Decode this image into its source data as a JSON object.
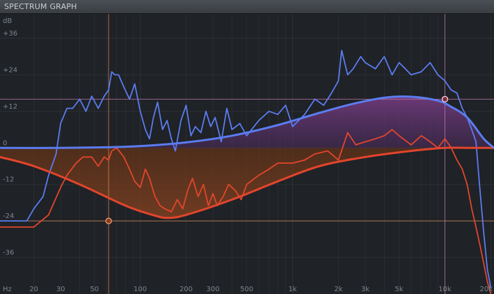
{
  "window": {
    "title": "SPECTRUM GRAPH"
  },
  "y_axis": {
    "unit": "dB",
    "ticks": [
      {
        "label": "+36",
        "value": 36
      },
      {
        "label": "+24",
        "value": 24
      },
      {
        "label": "+12",
        "value": 12
      },
      {
        "label": "0",
        "value": 0
      },
      {
        "label": "-12",
        "value": -12
      },
      {
        "label": "-24",
        "value": -24
      },
      {
        "label": "-36",
        "value": -36
      }
    ]
  },
  "x_axis": {
    "unit": "Hz",
    "ticks": [
      {
        "label": "20",
        "value": 20
      },
      {
        "label": "30",
        "value": 30
      },
      {
        "label": "50",
        "value": 50
      },
      {
        "label": "100",
        "value": 100
      },
      {
        "label": "200",
        "value": 200
      },
      {
        "label": "300",
        "value": 300
      },
      {
        "label": "500",
        "value": 500
      },
      {
        "label": "1k",
        "value": 1000
      },
      {
        "label": "2k",
        "value": 2000
      },
      {
        "label": "3k",
        "value": 3000
      },
      {
        "label": "5k",
        "value": 5000
      },
      {
        "label": "10k",
        "value": 10000
      },
      {
        "label": "20k",
        "value": 20000
      }
    ]
  },
  "colors": {
    "background": "#1f2226",
    "grid": "#2c3035",
    "blue_spectrum": "#5b7cf0",
    "red_spectrum": "#e2452c",
    "blue_fill": "#6a3a78",
    "red_fill": "#7a3a1c",
    "blue_marker_line": "#c07ab0",
    "red_marker_line": "#d88a5a"
  },
  "chart_data": {
    "type": "line",
    "x_scale": "log",
    "xlim": [
      12,
      21000
    ],
    "ylim": [
      -48,
      44
    ],
    "series": [
      {
        "key": "blue-curve",
        "color": "#5b7cf0",
        "x": [
          12,
          30,
          60,
          100,
          200,
          400,
          800,
          1500,
          2500,
          4000,
          6000,
          9000,
          11000,
          14000,
          18000,
          21000
        ],
        "y": [
          0,
          0,
          0.2,
          0.6,
          1.8,
          4,
          7.5,
          11.5,
          14.5,
          16.5,
          16.8,
          15.5,
          13.5,
          10,
          3,
          0
        ]
      },
      {
        "key": "red-curve",
        "color": "#e2452c",
        "x": [
          12,
          20,
          40,
          80,
          120,
          150,
          200,
          400,
          800,
          1500,
          3000,
          6000,
          10000,
          15000,
          21000
        ],
        "y": [
          -3,
          -6,
          -12,
          -19,
          -22,
          -23,
          -22,
          -17,
          -11,
          -6,
          -3,
          -1,
          0,
          0,
          0
        ]
      },
      {
        "key": "blue-spectrum",
        "color": "#5b7cf0",
        "x": [
          12,
          18,
          20,
          23,
          25,
          28,
          30,
          33,
          36,
          40,
          44,
          48,
          53,
          58,
          62,
          65,
          68,
          72,
          78,
          85,
          92,
          100,
          108,
          115,
          122,
          130,
          140,
          150,
          160,
          170,
          185,
          200,
          215,
          230,
          250,
          270,
          290,
          310,
          340,
          370,
          400,
          450,
          500,
          600,
          700,
          800,
          900,
          1000,
          1200,
          1400,
          1600,
          1800,
          2000,
          2100,
          2300,
          2500,
          2800,
          3000,
          3500,
          4000,
          4500,
          5000,
          5500,
          6000,
          7000,
          8000,
          9000,
          10000,
          11000,
          12000,
          13000,
          14000,
          15000,
          16000,
          17000,
          18000,
          19000,
          20000
        ],
        "y": [
          -24,
          -24,
          -20,
          -16,
          -9,
          -2,
          8,
          13,
          13,
          16,
          12,
          17,
          13,
          17,
          19,
          25,
          24,
          24,
          20,
          16,
          21,
          12,
          6,
          3,
          10,
          15,
          6,
          9,
          3,
          -1,
          9,
          14,
          4,
          7,
          5,
          12,
          7,
          10,
          2,
          13,
          6,
          8,
          4,
          9,
          12,
          11,
          14,
          7,
          11,
          16,
          14,
          18,
          22,
          32,
          24,
          26,
          30,
          28,
          26,
          30,
          24,
          28,
          26,
          24,
          25,
          28,
          24,
          22,
          19,
          18,
          13,
          10,
          6,
          2,
          -14,
          -28,
          -40,
          -46
        ]
      },
      {
        "key": "red-spectrum",
        "color": "#e2452c",
        "x": [
          12,
          18,
          20,
          25,
          30,
          33,
          38,
          42,
          48,
          53,
          58,
          62,
          65,
          70,
          78,
          85,
          92,
          100,
          108,
          115,
          125,
          135,
          145,
          160,
          175,
          190,
          205,
          220,
          240,
          260,
          280,
          300,
          320,
          350,
          380,
          420,
          460,
          500,
          600,
          700,
          800,
          1000,
          1200,
          1400,
          1700,
          2000,
          2300,
          2600,
          3000,
          3500,
          4000,
          4500,
          5000,
          6000,
          7000,
          8000,
          9000,
          10000,
          11000,
          12000,
          13000,
          14000,
          15000,
          16000,
          17000,
          18000,
          19000,
          20000
        ],
        "y": [
          -26,
          -26,
          -26,
          -22,
          -13,
          -9,
          -5,
          -3,
          -3,
          -6,
          -3,
          -4,
          -1,
          0,
          -3,
          -7,
          -11,
          -13,
          -7,
          -10,
          -16,
          -19,
          -20,
          -21,
          -17,
          -20,
          -14,
          -10,
          -16,
          -12,
          -19,
          -15,
          -19,
          -16,
          -12,
          -14,
          -17,
          -12,
          -9,
          -7,
          -5,
          -5,
          -4,
          -2,
          -1,
          -4,
          5,
          1,
          2,
          3,
          4,
          6,
          4,
          1,
          4,
          2,
          0,
          3,
          0,
          -4,
          -7,
          -12,
          -20,
          -26,
          -32,
          -38,
          -44,
          -48
        ]
      }
    ],
    "markers": [
      {
        "key": "red-marker",
        "x": 62,
        "y": -24,
        "color": "#e2452c"
      },
      {
        "key": "blue-marker",
        "x": 10000,
        "y": 16,
        "color": "#5b7cf0"
      }
    ]
  }
}
